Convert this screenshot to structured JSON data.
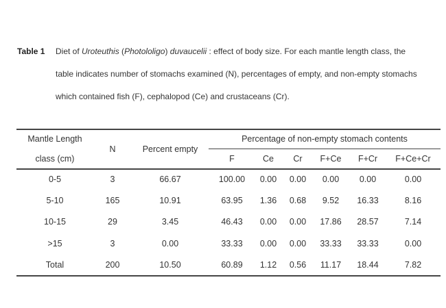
{
  "caption": {
    "label": "Table 1",
    "line1_pre": "Diet of ",
    "genus": "Uroteuthis",
    "sub_pre": " (",
    "subgenus": "Photololigo",
    "sub_post": ") ",
    "species": "duvaucelii",
    "line1_post": " : effect of body size. For each mantle length class, the",
    "line2": "table indicates number of stomachs examined (N), percentages of empty, and non-empty stomachs",
    "line3": "which contained fish (F), cephalopod (Ce) and crustaceans (Cr)."
  },
  "header": {
    "class1": "Mantle Length",
    "class2": "class (cm)",
    "n": "N",
    "empty": "Percent empty",
    "group": "Percentage of non-empty stomach contents",
    "sub": [
      "F",
      "Ce",
      "Cr",
      "F+Ce",
      "F+Cr",
      "F+Ce+Cr"
    ]
  },
  "rows": [
    [
      "0-5",
      "3",
      "66.67",
      "100.00",
      "0.00",
      "0.00",
      "0.00",
      "0.00",
      "0.00"
    ],
    [
      "5-10",
      "165",
      "10.91",
      "63.95",
      "1.36",
      "0.68",
      "9.52",
      "16.33",
      "8.16"
    ],
    [
      "10-15",
      "29",
      "3.45",
      "46.43",
      "0.00",
      "0.00",
      "17.86",
      "28.57",
      "7.14"
    ],
    [
      ">15",
      "3",
      "0.00",
      "33.33",
      "0.00",
      "0.00",
      "33.33",
      "33.33",
      "0.00"
    ],
    [
      "Total",
      "200",
      "10.50",
      "60.89",
      "1.12",
      "0.56",
      "11.17",
      "18.44",
      "7.82"
    ]
  ]
}
